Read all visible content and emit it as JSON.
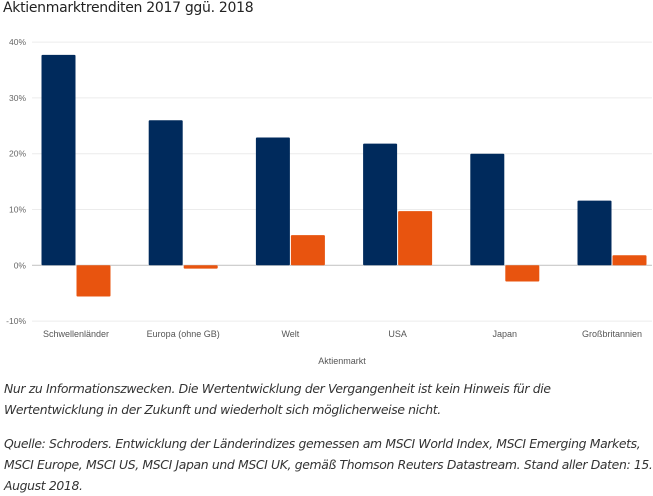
{
  "chart_data": {
    "type": "bar",
    "title": "Aktienmarktrenditen 2017 ggü. 2018",
    "xlabel": "Aktienmarkt",
    "ylabel": "",
    "ylim": [
      -10,
      40
    ],
    "yticks": [
      "-10%",
      "0%",
      "10%",
      "20%",
      "30%",
      "40%"
    ],
    "grid": true,
    "categories": [
      "Schwellenländer",
      "Europa (ohne GB)",
      "Welt",
      "USA",
      "Japan",
      "Großbritannien"
    ],
    "series": [
      {
        "values": [
          37.7,
          26.0,
          22.9,
          21.8,
          20.0,
          11.6
        ],
        "color": "#002a5c"
      },
      {
        "values": [
          -5.6,
          -0.6,
          5.4,
          9.7,
          -2.9,
          1.8
        ],
        "color": "#e8540f"
      }
    ]
  },
  "notes": {
    "disclaimer": "Nur zu Informationszwecken. Die Wertentwicklung der Vergangenheit ist kein Hinweis für die Wertentwicklung in der Zukunft und wiederholt sich möglicherweise nicht.",
    "source": "Quelle: Schroders. Entwicklung der Länderindizes gemessen am MSCI World Index, MSCI Emerging Markets, MSCI Europe, MSCI US, MSCI Japan und MSCI UK, gemäß Thomson Reuters Datastream. Stand aller Daten: 15. August 2018."
  }
}
